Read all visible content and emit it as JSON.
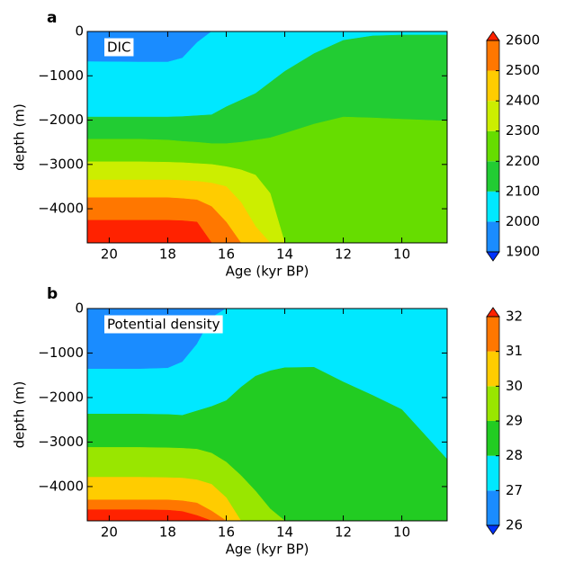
{
  "chart_data": [
    {
      "type": "contour",
      "panel": "a",
      "annotation": "DIC",
      "x_label": "Age (kyr BP)",
      "y_label": "depth (m)",
      "xlim": [
        20.75,
        8.45
      ],
      "ylim": [
        -4770,
        0
      ],
      "xticks": [
        20,
        18,
        16,
        14,
        12,
        10
      ],
      "yticks": [
        0,
        {
          "value": -1000,
          "label": "−1000"
        },
        {
          "value": -2000,
          "label": "−2000"
        },
        {
          "value": -3000,
          "label": "−3000"
        },
        {
          "value": -4000,
          "label": "−4000"
        }
      ],
      "levels": [
        1900,
        2000,
        2100,
        2200,
        2300,
        2400,
        2500,
        2600
      ],
      "colors": [
        "#1a8cff",
        "#00e8ff",
        "#22cc33",
        "#66dd00",
        "#ccee00",
        "#ffcc00",
        "#ff7700"
      ],
      "under_color": "#0033ff",
      "over_color": "#ff2200",
      "x": [
        20.75,
        19,
        18,
        17.5,
        17,
        16.5,
        16,
        15.5,
        15,
        14.5,
        14,
        13,
        12,
        11,
        10,
        8.45
      ],
      "contours": [
        [
          -680,
          -690,
          -690,
          -600,
          -250,
          0,
          0,
          0,
          0,
          0,
          0,
          0,
          0,
          0,
          0,
          0
        ],
        [
          -1930,
          -1930,
          -1930,
          -1920,
          -1900,
          -1880,
          -1700,
          -1550,
          -1400,
          -1150,
          -900,
          -500,
          -200,
          -100,
          -80,
          -80
        ],
        [
          -2430,
          -2430,
          -2450,
          -2480,
          -2500,
          -2530,
          -2530,
          -2500,
          -2450,
          -2400,
          -2300,
          -2090,
          -1930,
          -1950,
          -1980,
          -2020
        ],
        [
          -2940,
          -2940,
          -2950,
          -2960,
          -2980,
          -3000,
          -3050,
          -3120,
          -3240,
          -3650,
          -4770,
          -4770,
          -4770,
          -4770,
          -4770,
          -4770
        ],
        [
          -3350,
          -3350,
          -3350,
          -3360,
          -3380,
          -3420,
          -3500,
          -3850,
          -4400,
          -4770,
          -4770,
          -4770,
          -4770,
          -4770,
          -4770,
          -4770
        ],
        [
          -3750,
          -3750,
          -3750,
          -3770,
          -3800,
          -3950,
          -4300,
          -4770,
          -4770,
          -4770,
          -4770,
          -4770,
          -4770,
          -4770,
          -4770,
          -4770
        ],
        [
          -4260,
          -4260,
          -4260,
          -4270,
          -4300,
          -4770,
          -4770,
          -4770,
          -4770,
          -4770,
          -4770,
          -4770,
          -4770,
          -4770,
          -4770,
          -4770
        ]
      ]
    },
    {
      "type": "contour",
      "panel": "b",
      "annotation": "Potential density",
      "x_label": "Age (kyr BP)",
      "y_label": "depth (m)",
      "xlim": [
        20.75,
        8.45
      ],
      "ylim": [
        -4770,
        0
      ],
      "xticks": [
        20,
        18,
        16,
        14,
        12,
        10
      ],
      "yticks": [
        0,
        {
          "value": -1000,
          "label": "−1000"
        },
        {
          "value": -2000,
          "label": "−2000"
        },
        {
          "value": -3000,
          "label": "−3000"
        },
        {
          "value": -4000,
          "label": "−4000"
        }
      ],
      "levels": [
        26,
        27,
        28,
        29,
        30,
        31,
        32
      ],
      "colors": [
        "#1a8cff",
        "#00e8ff",
        "#22cc22",
        "#99e600",
        "#ffcc00",
        "#ff7700"
      ],
      "under_color": "#0033ff",
      "over_color": "#ff2200",
      "x": [
        20.75,
        19,
        18,
        17.5,
        17,
        16.5,
        16,
        15.5,
        15,
        14.5,
        14,
        13,
        12,
        11,
        10,
        8.45
      ],
      "contours": [
        [
          -1360,
          -1360,
          -1340,
          -1200,
          -800,
          -200,
          0,
          0,
          0,
          0,
          0,
          0,
          0,
          0,
          0,
          0
        ],
        [
          -2370,
          -2370,
          -2380,
          -2400,
          -2300,
          -2200,
          -2070,
          -1770,
          -1520,
          -1400,
          -1330,
          -1320,
          -1650,
          -1950,
          -2270,
          -3390
        ],
        [
          -3120,
          -3120,
          -3130,
          -3140,
          -3160,
          -3250,
          -3450,
          -3750,
          -4100,
          -4500,
          -4770,
          -4770,
          -4770,
          -4770,
          -4770,
          -4770
        ],
        [
          -3790,
          -3790,
          -3800,
          -3810,
          -3850,
          -3950,
          -4250,
          -4770,
          -4770,
          -4770,
          -4770,
          -4770,
          -4770,
          -4770,
          -4770,
          -4770
        ],
        [
          -4300,
          -4300,
          -4300,
          -4320,
          -4370,
          -4550,
          -4770,
          -4770,
          -4770,
          -4770,
          -4770,
          -4770,
          -4770,
          -4770,
          -4770,
          -4770
        ],
        [
          -4520,
          -4520,
          -4530,
          -4560,
          -4650,
          -4770,
          -4770,
          -4770,
          -4770,
          -4770,
          -4770,
          -4770,
          -4770,
          -4770,
          -4770,
          -4770
        ]
      ]
    }
  ]
}
